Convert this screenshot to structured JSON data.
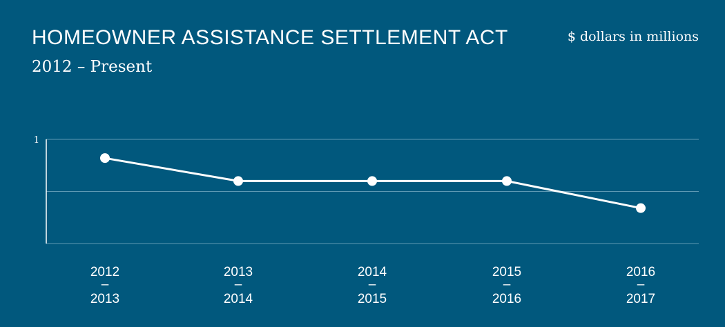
{
  "header": {
    "title": "HOMEOWNER ASSISTANCE SETTLEMENT ACT",
    "subtitle": "2012 – Present",
    "unit_note": "$ dollars in millions"
  },
  "colors": {
    "background": "#01587d",
    "line": "#ffffff",
    "grid": "#5f9ab4"
  },
  "chart_data": {
    "type": "line",
    "categories": [
      [
        "2012",
        "–",
        "2013"
      ],
      [
        "2013",
        "–",
        "2014"
      ],
      [
        "2014",
        "–",
        "2015"
      ],
      [
        "2015",
        "–",
        "2016"
      ],
      [
        "2016",
        "–",
        "2017"
      ]
    ],
    "series": [
      {
        "values": [
          0.82,
          0.6,
          0.6,
          0.6,
          0.34
        ]
      }
    ],
    "ylim": [
      0,
      1
    ],
    "yticks": [
      {
        "value": 1,
        "label": "1"
      }
    ],
    "grid": true,
    "legend": "none"
  }
}
